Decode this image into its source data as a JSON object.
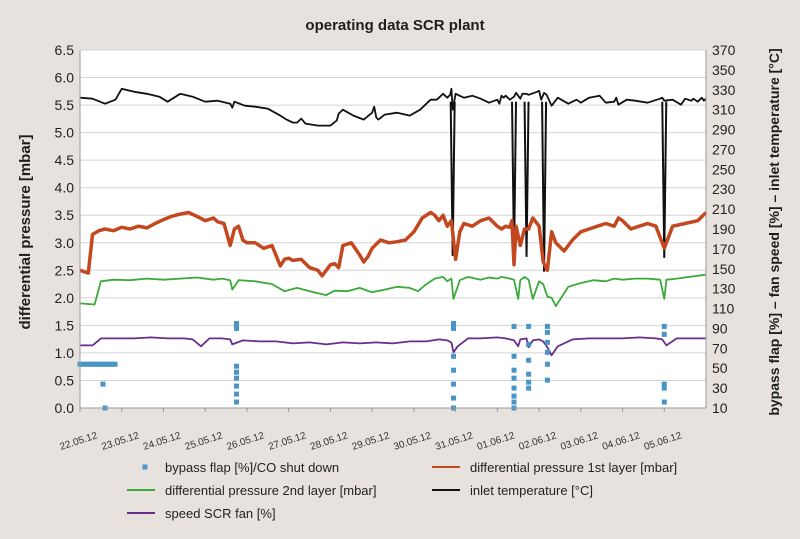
{
  "chart_data": {
    "type": "line",
    "title": "operating data SCR plant",
    "ylabel_left": "differential pressure [mbar]",
    "ylabel_right": "bypass flap [%] – fan speed [%] – inlet temperature [°C]",
    "ylim_left": [
      0.0,
      6.5
    ],
    "ylim_right": [
      10,
      370
    ],
    "yticks_left": [
      "0.0",
      "0.5",
      "1.0",
      "1.5",
      "2.0",
      "2.5",
      "3.0",
      "3.5",
      "4.0",
      "4.5",
      "5.0",
      "5.5",
      "6.0",
      "6.5"
    ],
    "yticks_right": [
      "10",
      "30",
      "50",
      "70",
      "90",
      "110",
      "130",
      "150",
      "170",
      "190",
      "210",
      "230",
      "250",
      "270",
      "290",
      "310",
      "330",
      "350",
      "370"
    ],
    "grid": true,
    "legend_position": "bottom",
    "x_categories": [
      "22.05.12",
      "23.05.12",
      "24.05.12",
      "25.05.12",
      "26.05.12",
      "27.05.12",
      "28.05.12",
      "29.05.12",
      "30.05.12",
      "31.05.12",
      "01.06.12",
      "02.06.12",
      "03.06.12",
      "04.06.12",
      "05.06.12"
    ],
    "series": [
      {
        "name": "inlet temperature [°C]",
        "axis": "right",
        "color": "#111111",
        "style": "line",
        "x": [
          0,
          0.3,
          0.6,
          0.85,
          1.0,
          1.3,
          1.6,
          1.9,
          2.1,
          2.4,
          2.7,
          3.0,
          3.3,
          3.6,
          3.65,
          3.7,
          3.95,
          4.2,
          4.5,
          4.8,
          4.95,
          5.1,
          5.2,
          5.3,
          5.4,
          5.7,
          6.0,
          6.15,
          6.2,
          6.3,
          6.55,
          6.8,
          7.0,
          7.05,
          7.1,
          7.15,
          7.3,
          7.6,
          7.9,
          8.15,
          8.4,
          8.55,
          8.7,
          8.8,
          8.87,
          8.9,
          8.93,
          9.0,
          9.2,
          9.4,
          9.6,
          9.8,
          10.0,
          10.05,
          10.1,
          10.15,
          10.2,
          10.3,
          10.4,
          10.45,
          10.55,
          10.6,
          10.7,
          10.75,
          10.95,
          11.0,
          11.05,
          11.12,
          11.18,
          11.3,
          11.45,
          11.7,
          11.9,
          12.0,
          12.2,
          12.45,
          12.6,
          12.8,
          12.85,
          12.9,
          13.1,
          13.3,
          13.6,
          13.9,
          13.95,
          14.0,
          14.2,
          14.4,
          14.5,
          14.65,
          14.7,
          14.8,
          14.9,
          14.95,
          15.0
        ],
        "values": [
          322,
          321,
          316,
          320,
          331,
          328,
          326,
          323,
          318,
          326,
          323,
          318,
          319,
          316,
          312,
          318,
          314,
          313,
          311,
          304,
          300,
          297,
          297,
          301,
          296,
          294,
          294,
          299,
          306,
          310,
          304,
          300,
          307,
          313,
          302,
          300,
          305,
          307,
          304,
          310,
          320,
          320,
          326,
          322,
          325,
          331,
          310,
          326,
          322,
          324,
          321,
          317,
          320,
          316,
          324,
          322,
          324,
          320,
          323,
          327,
          321,
          326,
          326,
          325,
          328,
          329,
          320,
          327,
          325,
          314,
          322,
          316,
          320,
          317,
          322,
          324,
          317,
          318,
          322,
          315,
          320,
          319,
          317,
          321,
          322,
          319,
          320,
          315,
          321,
          319,
          321,
          318,
          322,
          319,
          321
        ],
        "dips": [
          {
            "x": 8.93,
            "value": 163
          },
          {
            "x": 10.4,
            "value": 162
          },
          {
            "x": 10.7,
            "value": 162
          },
          {
            "x": 11.12,
            "value": 147
          },
          {
            "x": 14.0,
            "value": 161
          }
        ]
      },
      {
        "name": "differential pressure 1st layer [mbar]",
        "axis": "left",
        "color": "#c4481f",
        "style": "band",
        "x": [
          0,
          0.2,
          0.3,
          0.45,
          0.6,
          0.8,
          1.0,
          1.2,
          1.4,
          1.6,
          1.8,
          2.0,
          2.2,
          2.4,
          2.6,
          2.8,
          3.0,
          3.2,
          3.3,
          3.45,
          3.6,
          3.7,
          3.8,
          3.9,
          4.0,
          4.2,
          4.4,
          4.6,
          4.8,
          4.9,
          5.0,
          5.1,
          5.3,
          5.5,
          5.7,
          5.8,
          6.0,
          6.1,
          6.2,
          6.3,
          6.5,
          6.7,
          6.8,
          6.9,
          7.0,
          7.2,
          7.4,
          7.6,
          7.8,
          8.0,
          8.2,
          8.4,
          8.5,
          8.6,
          8.7,
          8.8,
          8.9,
          9.0,
          9.1,
          9.2,
          9.4,
          9.6,
          9.8,
          10.0,
          10.1,
          10.2,
          10.3,
          10.35,
          10.4,
          10.45,
          10.55,
          10.65,
          10.75,
          10.85,
          11.0,
          11.1,
          11.2,
          11.3,
          11.4,
          11.6,
          11.8,
          12.0,
          12.2,
          12.4,
          12.6,
          12.8,
          12.9,
          13.0,
          13.2,
          13.4,
          13.6,
          13.8,
          14.0,
          14.2,
          14.5,
          14.8,
          15.0
        ],
        "values": [
          2.5,
          2.45,
          3.15,
          3.22,
          3.25,
          3.22,
          3.28,
          3.25,
          3.3,
          3.27,
          3.35,
          3.42,
          3.48,
          3.52,
          3.55,
          3.48,
          3.4,
          3.45,
          3.38,
          3.35,
          2.95,
          3.25,
          3.3,
          3.05,
          3.0,
          3.0,
          2.9,
          2.95,
          2.58,
          2.7,
          2.72,
          2.68,
          2.7,
          2.55,
          2.5,
          2.4,
          2.6,
          2.62,
          2.55,
          2.95,
          3.0,
          2.78,
          2.65,
          2.75,
          2.9,
          3.05,
          3.0,
          3.02,
          3.05,
          3.2,
          3.45,
          3.55,
          3.5,
          3.4,
          3.5,
          3.3,
          3.4,
          2.7,
          3.2,
          3.35,
          3.3,
          3.4,
          3.45,
          3.3,
          3.25,
          3.3,
          3.28,
          3.4,
          2.6,
          3.3,
          2.95,
          3.25,
          3.25,
          3.45,
          3.3,
          2.65,
          2.5,
          3.2,
          3.0,
          2.85,
          3.05,
          3.2,
          3.25,
          3.3,
          3.35,
          3.3,
          3.45,
          3.4,
          3.25,
          3.3,
          3.35,
          3.3,
          2.9,
          3.3,
          3.35,
          3.4,
          3.55
        ]
      },
      {
        "name": "differential pressure 2nd layer [mbar]",
        "axis": "left",
        "color": "#3aaa3a",
        "style": "line",
        "x": [
          0,
          0.35,
          0.5,
          0.8,
          1.2,
          1.6,
          2.0,
          2.4,
          2.8,
          3.2,
          3.4,
          3.6,
          3.65,
          3.8,
          4.2,
          4.6,
          4.9,
          5.2,
          5.6,
          5.9,
          6.1,
          6.4,
          6.7,
          7.0,
          7.3,
          7.6,
          7.9,
          8.1,
          8.3,
          8.5,
          8.7,
          8.8,
          8.9,
          8.95,
          9.1,
          9.3,
          9.6,
          9.8,
          10.0,
          10.1,
          10.3,
          10.4,
          10.5,
          10.55,
          10.65,
          10.75,
          10.85,
          11.0,
          11.1,
          11.2,
          11.3,
          11.4,
          11.7,
          12.0,
          12.3,
          12.6,
          12.8,
          13.0,
          13.3,
          13.6,
          13.9,
          14.0,
          14.05,
          14.3,
          14.6,
          15.0
        ],
        "values": [
          1.9,
          1.88,
          2.3,
          2.33,
          2.32,
          2.35,
          2.33,
          2.35,
          2.37,
          2.33,
          2.35,
          2.32,
          2.15,
          2.32,
          2.3,
          2.25,
          2.12,
          2.18,
          2.1,
          2.05,
          2.13,
          2.12,
          2.18,
          2.1,
          2.15,
          2.2,
          2.18,
          2.12,
          2.25,
          2.35,
          2.38,
          2.3,
          2.35,
          1.98,
          2.32,
          2.38,
          2.33,
          2.37,
          2.35,
          2.38,
          2.35,
          2.33,
          1.98,
          2.32,
          2.38,
          2.33,
          1.98,
          2.3,
          2.25,
          2.02,
          2.0,
          1.85,
          2.2,
          2.27,
          2.32,
          2.3,
          2.35,
          2.33,
          2.35,
          2.35,
          2.33,
          1.98,
          2.33,
          2.35,
          2.38,
          2.42
        ]
      },
      {
        "name": "speed SCR fan [%]",
        "axis": "right",
        "color": "#6a2d8a",
        "style": "line",
        "x": [
          0,
          0.3,
          0.5,
          0.9,
          1.3,
          1.7,
          2.1,
          2.5,
          2.7,
          2.9,
          3.1,
          3.4,
          3.6,
          3.65,
          3.9,
          4.3,
          4.7,
          5.1,
          5.5,
          5.9,
          6.3,
          6.7,
          7.1,
          7.5,
          7.9,
          8.3,
          8.6,
          8.8,
          8.9,
          8.95,
          9.05,
          9.3,
          9.6,
          10.0,
          10.2,
          10.4,
          10.5,
          10.55,
          10.7,
          10.75,
          10.85,
          11.0,
          11.1,
          11.2,
          11.3,
          11.45,
          11.8,
          12.2,
          12.6,
          13.0,
          13.4,
          13.8,
          13.95,
          14.05,
          14.3,
          14.6,
          15.0
        ],
        "values": [
          73,
          73,
          80,
          80,
          80,
          81,
          80,
          80,
          79,
          72,
          80,
          80,
          79,
          74,
          78,
          77,
          77,
          75,
          76,
          74,
          76,
          75,
          76,
          75,
          77,
          77,
          79,
          78,
          76,
          66,
          72,
          80,
          80,
          81,
          80,
          78,
          72,
          79,
          80,
          71,
          78,
          79,
          77,
          71,
          63,
          72,
          79,
          80,
          80,
          80,
          81,
          80,
          79,
          73,
          80,
          80,
          80
        ]
      },
      {
        "name": "bypass flap [%]/CO shut down",
        "axis": "right",
        "color": "#4a95c8",
        "style": "markers",
        "x": [
          0,
          0.06,
          0.12,
          0.18,
          0.24,
          0.3,
          0.36,
          0.42,
          0.48,
          0.54,
          0.6,
          0.66,
          0.72,
          0.78,
          0.84,
          0.55,
          0.6,
          3.75,
          3.75,
          3.75,
          3.75,
          3.75,
          3.75,
          3.75,
          3.75,
          3.75,
          8.95,
          8.95,
          8.95,
          8.95,
          8.95,
          8.95,
          8.95,
          8.95,
          10.4,
          10.4,
          10.4,
          10.4,
          10.4,
          10.4,
          10.4,
          10.4,
          10.75,
          10.75,
          10.75,
          10.75,
          10.75,
          10.75,
          11.2,
          11.2,
          11.2,
          11.2,
          11.2,
          11.2,
          14.0,
          14.0,
          14.0,
          14.0,
          14.0
        ],
        "values": [
          54,
          54,
          54,
          54,
          54,
          54,
          54,
          54,
          54,
          54,
          54,
          54,
          54,
          54,
          54,
          34,
          10,
          93,
          95,
          90,
          52,
          46,
          40,
          32,
          24,
          16,
          93,
          90,
          62,
          48,
          34,
          20,
          10,
          95,
          92,
          62,
          48,
          40,
          30,
          22,
          16,
          10,
          92,
          74,
          58,
          44,
          36,
          30,
          92,
          86,
          76,
          66,
          54,
          38,
          92,
          84,
          34,
          30,
          16
        ]
      }
    ],
    "legend": [
      {
        "label": "bypass flap [%]/CO shut down",
        "color": "#4a95c8",
        "style": "marker"
      },
      {
        "label": "differential pressure 1st layer [mbar]",
        "color": "#c4481f",
        "style": "line"
      },
      {
        "label": "differential pressure 2nd layer [mbar]",
        "color": "#3aaa3a",
        "style": "line"
      },
      {
        "label": "inlet temperature [°C]",
        "color": "#111111",
        "style": "line"
      },
      {
        "label": "speed SCR fan [%]",
        "color": "#6a2d8a",
        "style": "line"
      }
    ]
  }
}
